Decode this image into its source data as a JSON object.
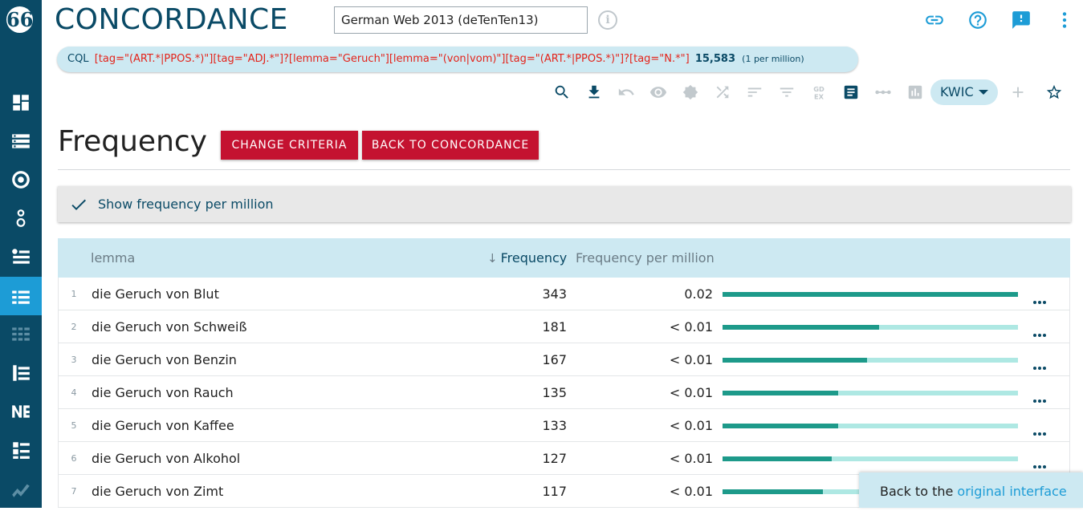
{
  "app": {
    "brand": "CONCORDANCE",
    "logo_glyph": "66",
    "corpus_value": "German Web 2013 (deTenTen13)"
  },
  "sidebar": {
    "items": [
      {
        "name": "dashboard-icon"
      },
      {
        "name": "wordsketch-icon"
      },
      {
        "name": "thesaurus-icon"
      },
      {
        "name": "sketch-diff-icon"
      },
      {
        "name": "wordlist-icon"
      },
      {
        "name": "frequency-icon",
        "active": true
      },
      {
        "name": "keywords-icon",
        "dim": true
      },
      {
        "name": "ngrams-icon"
      },
      {
        "name": "ne-icon"
      },
      {
        "name": "terms-icon"
      },
      {
        "name": "trends-icon",
        "dim": true
      }
    ]
  },
  "query": {
    "label": "CQL",
    "cql": "[tag=\"(ART.*|PPOS.*)\"][tag=\"ADJ.*\"]?[lemma=\"Geruch\"][lemma=\"(von|vom)\"][tag=\"(ART.*|PPOS.*)\"]?[tag=\"N.*\"]",
    "hits": "15,583",
    "per_million": "(1 per million)"
  },
  "toolbar": {
    "view_label": "KWIC",
    "icons": [
      "search-icon",
      "download-icon",
      "undo-icon",
      "view-icon",
      "badge-icon",
      "shuffle-icon",
      "sort-icon",
      "filter-icon",
      "gdex-icon",
      "text-types-icon",
      "dots-icon",
      "chart-icon",
      "add-icon",
      "star-icon"
    ]
  },
  "page": {
    "title": "Frequency",
    "change_criteria": "CHANGE CRITERIA",
    "back_to_concordance": "BACK TO CONCORDANCE",
    "show_freq_pm": "Show frequency per million"
  },
  "table": {
    "headers": {
      "lemma": "lemma",
      "frequency": "Frequency",
      "frequency_pm": "Frequency per million"
    },
    "rows": [
      {
        "num": "1",
        "lemma": "die Geruch von Blut",
        "freq": "343",
        "fpm": "0.02",
        "share": 1.0
      },
      {
        "num": "2",
        "lemma": "die Geruch von Schweiß",
        "freq": "181",
        "fpm": "< 0.01",
        "share": 0.53
      },
      {
        "num": "3",
        "lemma": "die Geruch von Benzin",
        "freq": "167",
        "fpm": "< 0.01",
        "share": 0.49
      },
      {
        "num": "4",
        "lemma": "die Geruch von Rauch",
        "freq": "135",
        "fpm": "< 0.01",
        "share": 0.39
      },
      {
        "num": "5",
        "lemma": "die Geruch von Kaffee",
        "freq": "133",
        "fpm": "< 0.01",
        "share": 0.39
      },
      {
        "num": "6",
        "lemma": "die Geruch von Alkohol",
        "freq": "127",
        "fpm": "< 0.01",
        "share": 0.37
      },
      {
        "num": "7",
        "lemma": "die Geruch von Zimt",
        "freq": "117",
        "fpm": "< 0.01",
        "share": 0.34
      }
    ]
  },
  "footer": {
    "back_text": "Back to the ",
    "back_link": "original interface"
  },
  "colors": {
    "sidebar": "#0a4a66",
    "accent": "#1d9cd6",
    "button_red": "#c41230",
    "bar_fill": "#1d9a8a",
    "bar_track": "#aee8e3"
  }
}
